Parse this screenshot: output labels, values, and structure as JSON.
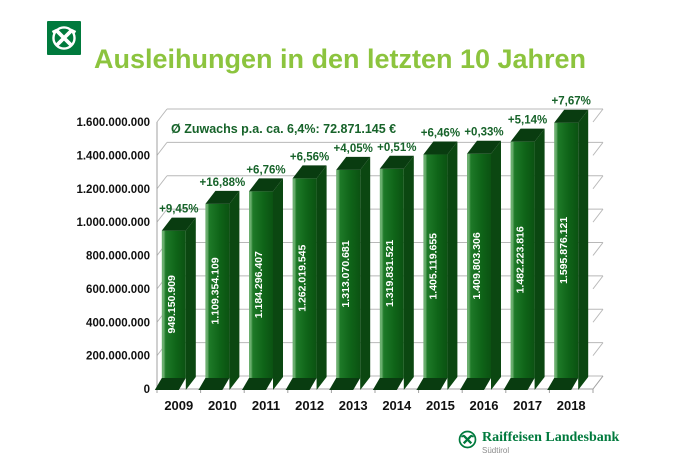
{
  "header": {
    "title": "Ausleihungen in den letzten 10 Jahren",
    "logo": "raiffeisen-gable-cross"
  },
  "footer": {
    "brand": "Raiffeisen Landesbank",
    "region": "Südtirol",
    "logo": "raiffeisen-gable-cross"
  },
  "colors": {
    "title_green": "#8cc43e",
    "raiffeisen_green": "#007a3d",
    "text_green": "#17632a",
    "bar_edge_light": "#6aae6e",
    "bar_front_light": "#1e7a28",
    "bar_front": "#0f6418",
    "bar_front_dark": "#0b5212",
    "bar_side": "#0b4711",
    "bar_top": "#093c10",
    "grid": "#b8b8b8",
    "axis": "#a0a0a0",
    "axis_text": "#111111",
    "value_label": "#ffffff"
  },
  "chart_data": {
    "type": "bar",
    "projection": "3d",
    "title": "Ausleihungen in den letzten 10 Jahren",
    "annotation": "Ø Zuwachs p.a. ca. 6,4%: 72.871.145 €",
    "xlabel": "",
    "ylabel": "",
    "ylim": [
      0,
      1600000000
    ],
    "grid": true,
    "legend": "none",
    "categories": [
      "2009",
      "2010",
      "2011",
      "2012",
      "2013",
      "2014",
      "2015",
      "2016",
      "2017",
      "2018"
    ],
    "values": [
      949150909,
      1109354109,
      1184296407,
      1262019545,
      1313070681,
      1319831521,
      1405119655,
      1409803306,
      1482223816,
      1595876121
    ],
    "value_labels": [
      "949.150.909",
      "1.109.354.109",
      "1.184.296.407",
      "1.262.019.545",
      "1.313.070.681",
      "1.319.831.521",
      "1.405.119.655",
      "1.409.803.306",
      "1.482.223.816",
      "1.595.876.121"
    ],
    "growth_labels": [
      "+9,45%",
      "+16,88%",
      "+6,76%",
      "+6,56%",
      "+4,05%",
      "+0,51%",
      "+6,46%",
      "+0,33%",
      "+5,14%",
      "+7,67%"
    ],
    "y_ticks": [
      "0",
      "200.000.000",
      "400.000.000",
      "600.000.000",
      "800.000.000",
      "1.000.000.000",
      "1.200.000.000",
      "1.400.000.000",
      "1.600.000.000"
    ]
  }
}
